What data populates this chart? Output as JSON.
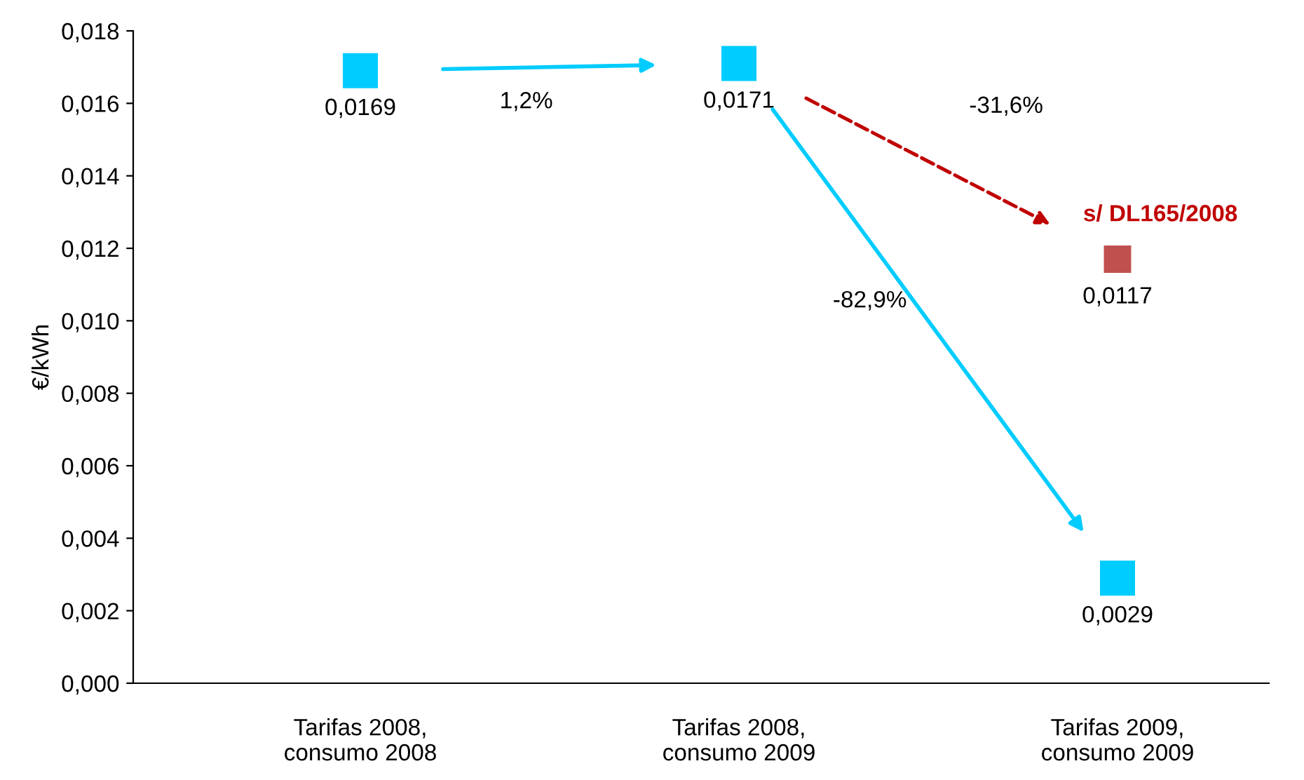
{
  "chart_data": {
    "type": "scatter",
    "ylabel": "€/kWh",
    "categories": [
      "Tarifas 2008,\nconsumo 2008",
      "Tarifas 2008,\nconsumo 2009",
      "Tarifas 2009,\nconsumo 2009"
    ],
    "series": [
      {
        "color": "#00ccff",
        "values": [
          0.0169,
          0.0171,
          0.0029
        ],
        "marker": "square",
        "value_labels": [
          "0,0169",
          "0,0171",
          "0,0029"
        ]
      },
      {
        "name": "s/ DL165/2008",
        "color": "#c0504d",
        "values": [
          null,
          null,
          0.0117
        ],
        "marker": "square",
        "value_labels": [
          null,
          null,
          "0,0117"
        ]
      }
    ],
    "annotations": [
      "1,2%",
      "-82,9%",
      "-31,6%"
    ],
    "ylim": [
      0,
      0.018
    ],
    "yticks": [
      {
        "value": 0,
        "label": "0,000"
      },
      {
        "value": 0.002,
        "label": "0,002"
      },
      {
        "value": 0.004,
        "label": "0,004"
      },
      {
        "value": 0.006,
        "label": "0,006"
      },
      {
        "value": 0.008,
        "label": "0,008"
      },
      {
        "value": 0.01,
        "label": "0,010"
      },
      {
        "value": 0.012,
        "label": "0,012"
      },
      {
        "value": 0.014,
        "label": "0,014"
      },
      {
        "value": 0.016,
        "label": "0,016"
      },
      {
        "value": 0.018,
        "label": "0,018"
      }
    ],
    "grid": false,
    "legend": false
  }
}
